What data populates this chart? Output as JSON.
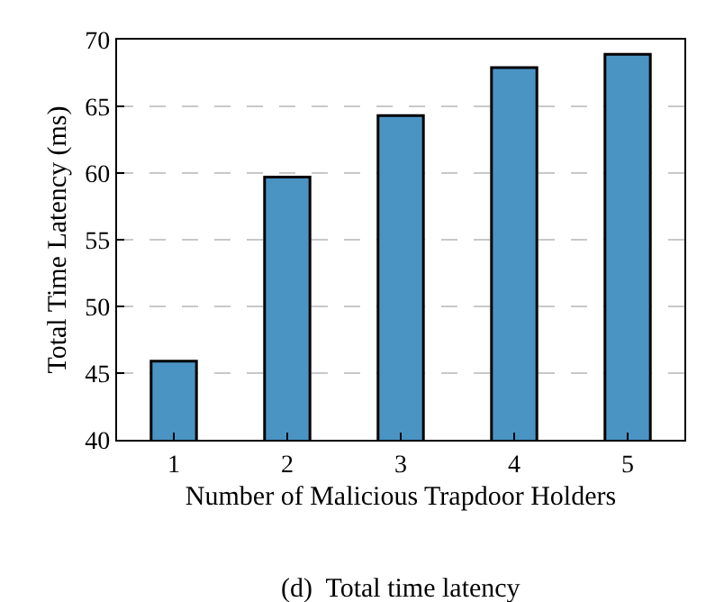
{
  "chart_data": {
    "type": "bar",
    "categories": [
      "1",
      "2",
      "3",
      "4",
      "5"
    ],
    "values": [
      45.9,
      59.7,
      64.3,
      67.9,
      68.9
    ],
    "color": "#4a94c4",
    "xlabel": "Number of Malicious Trapdoor Holders",
    "ylabel": "Total Time Latency (ms)",
    "ylim": [
      40,
      70
    ],
    "yticks": [
      40,
      45,
      50,
      55,
      60,
      65,
      70
    ],
    "grid": "y",
    "annotations": [
      "(d)  Total time latency"
    ]
  }
}
